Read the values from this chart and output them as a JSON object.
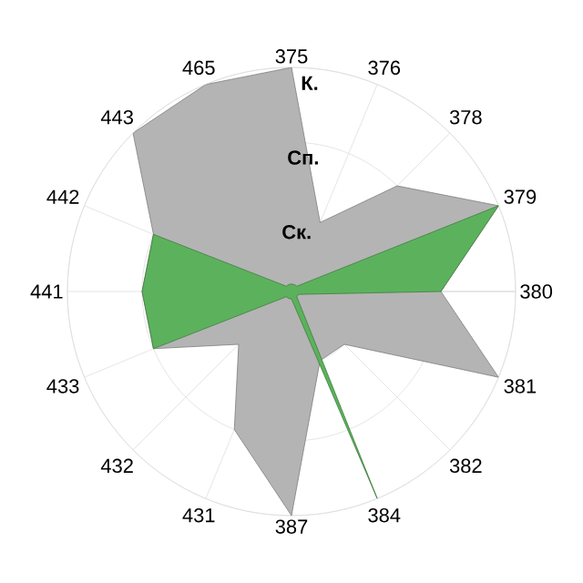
{
  "chart_data": {
    "type": "radar",
    "categories": [
      "375",
      "376",
      "378",
      "379",
      "380",
      "381",
      "382",
      "384",
      "387",
      "431",
      "432",
      "433",
      "441",
      "442",
      "443",
      "465"
    ],
    "ylim": [
      0,
      3
    ],
    "yticks": [
      {
        "value": 1,
        "label": "Ск."
      },
      {
        "value": 2,
        "label": "Сп."
      },
      {
        "value": 3,
        "label": "К."
      }
    ],
    "grid": true,
    "series": [
      {
        "color": "#b4b4b4",
        "values": [
          3,
          1,
          2,
          3,
          2,
          3,
          1,
          1,
          3,
          2,
          1,
          2,
          2,
          2,
          3,
          3
        ]
      },
      {
        "color": "#5cb25c",
        "values": [
          0.1,
          0.1,
          0.1,
          3,
          2,
          0.1,
          0.1,
          3,
          0.1,
          0.1,
          0.1,
          2,
          2,
          2,
          0.1,
          0.1
        ]
      }
    ]
  }
}
